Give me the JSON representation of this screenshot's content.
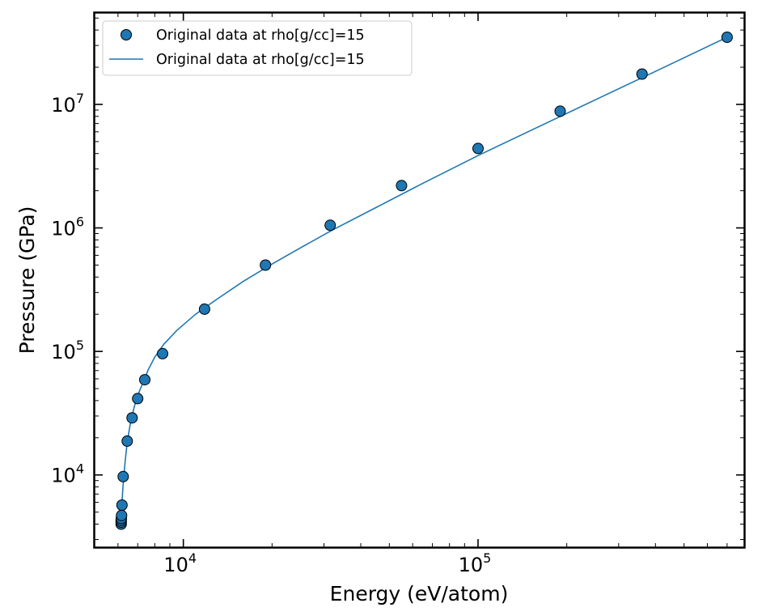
{
  "chart_data": {
    "type": "scatter",
    "xlabel": "Energy (eV/atom)",
    "ylabel": "Pressure (GPa)",
    "xscale": "log",
    "yscale": "log",
    "xlim": [
      5000,
      800000
    ],
    "ylim": [
      2600,
      55000000
    ],
    "grid": false,
    "legend_position": "top-left",
    "x_ticks": [
      {
        "value": 10000,
        "base": "10",
        "exp": "4"
      },
      {
        "value": 100000,
        "base": "10",
        "exp": "5"
      }
    ],
    "y_ticks": [
      {
        "value": 10000,
        "base": "10",
        "exp": "4"
      },
      {
        "value": 100000,
        "base": "10",
        "exp": "5"
      },
      {
        "value": 1000000,
        "base": "10",
        "exp": "6"
      },
      {
        "value": 10000000,
        "base": "10",
        "exp": "7"
      }
    ],
    "series": [
      {
        "name": "Original data at rho[g/cc]=15",
        "style": "markers",
        "color": "#1f77b4",
        "edgecolor": "#000000",
        "points": [
          [
            6150,
            4000
          ],
          [
            6150,
            4150
          ],
          [
            6150,
            4300
          ],
          [
            6160,
            4450
          ],
          [
            6170,
            4700
          ],
          [
            6190,
            5700
          ],
          [
            6250,
            9700
          ],
          [
            6450,
            18800
          ],
          [
            6700,
            29000
          ],
          [
            7000,
            41500
          ],
          [
            7400,
            59000
          ],
          [
            8500,
            96000
          ],
          [
            11800,
            220000
          ],
          [
            19000,
            500000
          ],
          [
            31500,
            1050000
          ],
          [
            55000,
            2200000
          ],
          [
            100000,
            4400000
          ],
          [
            190000,
            8800000
          ],
          [
            360000,
            17600000
          ],
          [
            700000,
            35000000
          ]
        ]
      },
      {
        "name": "Original data at rho[g/cc]=15",
        "style": "line",
        "color": "#1f77b4",
        "points": [
          [
            6150,
            4000
          ],
          [
            6170,
            5000
          ],
          [
            6200,
            6300
          ],
          [
            6250,
            8500
          ],
          [
            6350,
            13000
          ],
          [
            6450,
            18500
          ],
          [
            6600,
            25500
          ],
          [
            6800,
            35000
          ],
          [
            7000,
            44000
          ],
          [
            7300,
            56000
          ],
          [
            7600,
            71000
          ],
          [
            8000,
            90000
          ],
          [
            8600,
            115000
          ],
          [
            9500,
            148000
          ],
          [
            11000,
            200000
          ],
          [
            13000,
            265000
          ],
          [
            16000,
            370000
          ],
          [
            20000,
            510000
          ],
          [
            25000,
            690000
          ],
          [
            32000,
            960000
          ],
          [
            45000,
            1460000
          ],
          [
            65000,
            2300000
          ],
          [
            100000,
            3850000
          ],
          [
            150000,
            6100000
          ],
          [
            250000,
            10900000
          ],
          [
            400000,
            18500000
          ],
          [
            700000,
            35000000
          ]
        ]
      }
    ]
  }
}
